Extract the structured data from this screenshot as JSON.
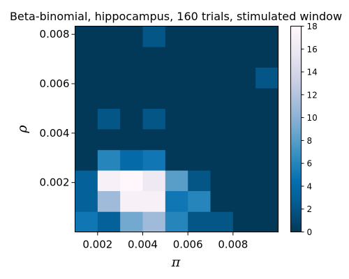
{
  "chart_data": {
    "type": "heatmap",
    "title": "Beta-binomial, hippocampus, 160 trials, stimulated window",
    "xlabel": "π",
    "ylabel": "ρ",
    "x_edges": [
      0.001,
      0.002,
      0.003,
      0.004,
      0.005,
      0.006,
      0.007,
      0.008,
      0.009,
      0.01
    ],
    "y_edges": [
      0.0,
      0.00083,
      0.00167,
      0.0025,
      0.00333,
      0.00417,
      0.005,
      0.00583,
      0.00667,
      0.0075,
      0.00833
    ],
    "x_ticks": [
      0.002,
      0.004,
      0.006,
      0.008
    ],
    "x_tick_labels": [
      "0.002",
      "0.004",
      "0.006",
      "0.008"
    ],
    "y_ticks": [
      0.002,
      0.004,
      0.006,
      0.008
    ],
    "y_tick_labels": [
      "0.002",
      "0.004",
      "0.006",
      "0.008"
    ],
    "values_bottom_to_top": [
      [
        5,
        3,
        9,
        11,
        6,
        2,
        2,
        0,
        0
      ],
      [
        3,
        11,
        17,
        17,
        5,
        6,
        0,
        0,
        0
      ],
      [
        3,
        17,
        18,
        16,
        8,
        2,
        0,
        0,
        0
      ],
      [
        0,
        6,
        4,
        5,
        0,
        0,
        0,
        0,
        0
      ],
      [
        0,
        0,
        0,
        0,
        0,
        0,
        0,
        0,
        0
      ],
      [
        0,
        2,
        0,
        2,
        0,
        0,
        0,
        0,
        0
      ],
      [
        0,
        0,
        0,
        0,
        0,
        0,
        0,
        0,
        0
      ],
      [
        0,
        0,
        0,
        0,
        0,
        0,
        0,
        0,
        2
      ],
      [
        0,
        0,
        0,
        0,
        0,
        0,
        0,
        0,
        0
      ],
      [
        0,
        0,
        0,
        2,
        0,
        0,
        0,
        0,
        0
      ]
    ],
    "colorbar": {
      "min": 0,
      "max": 18,
      "ticks": [
        0,
        2,
        4,
        6,
        8,
        10,
        12,
        14,
        16,
        18
      ],
      "tick_labels": [
        "0",
        "2",
        "4",
        "6",
        "8",
        "10",
        "12",
        "14",
        "16",
        "18"
      ],
      "colormap": "PuBu_r"
    },
    "grid": false
  }
}
